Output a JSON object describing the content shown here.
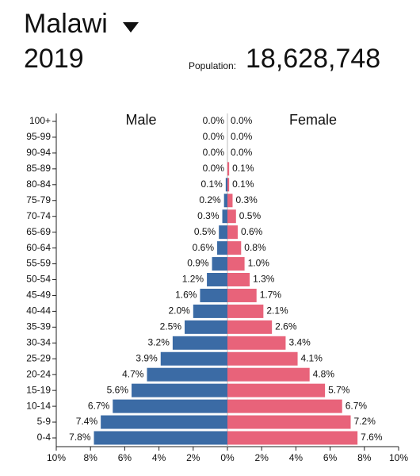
{
  "header": {
    "country": "Malawi",
    "year": "2019",
    "population_label": "Population:",
    "population": "18,628,748"
  },
  "chart_data": {
    "type": "population-pyramid",
    "categories": [
      "100+",
      "95-99",
      "90-94",
      "85-89",
      "80-84",
      "75-79",
      "70-74",
      "65-69",
      "60-64",
      "55-59",
      "50-54",
      "45-49",
      "40-44",
      "35-39",
      "30-34",
      "25-29",
      "20-24",
      "15-19",
      "10-14",
      "5-9",
      "0-4"
    ],
    "series": [
      {
        "name": "Male",
        "color": "#3b6ba5",
        "values": [
          0.0,
          0.0,
          0.0,
          0.0,
          0.1,
          0.2,
          0.3,
          0.5,
          0.6,
          0.9,
          1.2,
          1.6,
          2.0,
          2.5,
          3.2,
          3.9,
          4.7,
          5.6,
          6.7,
          7.4,
          7.8
        ],
        "value_labels": [
          "0.0%",
          "0.0%",
          "0.0%",
          "0.0%",
          "0.1%",
          "0.2%",
          "0.3%",
          "0.5%",
          "0.6%",
          "0.9%",
          "1.2%",
          "1.6%",
          "2.0%",
          "2.5%",
          "3.2%",
          "3.9%",
          "4.7%",
          "5.6%",
          "6.7%",
          "7.4%",
          "7.8%"
        ]
      },
      {
        "name": "Female",
        "color": "#e8637a",
        "values": [
          0.0,
          0.0,
          0.0,
          0.1,
          0.1,
          0.3,
          0.5,
          0.6,
          0.8,
          1.0,
          1.3,
          1.7,
          2.1,
          2.6,
          3.4,
          4.1,
          4.8,
          5.7,
          6.7,
          7.2,
          7.6
        ],
        "value_labels": [
          "0.0%",
          "0.0%",
          "0.0%",
          "0.1%",
          "0.1%",
          "0.3%",
          "0.5%",
          "0.6%",
          "0.8%",
          "1.0%",
          "1.3%",
          "1.7%",
          "2.1%",
          "2.6%",
          "3.4%",
          "4.1%",
          "4.8%",
          "5.7%",
          "6.7%",
          "7.2%",
          "7.6%"
        ]
      }
    ],
    "xlim": [
      -10,
      10
    ],
    "xticks": [
      {
        "value": -10,
        "label": "10%"
      },
      {
        "value": -8,
        "label": "8%"
      },
      {
        "value": -6,
        "label": "6%"
      },
      {
        "value": -4,
        "label": "4%"
      },
      {
        "value": -2,
        "label": "2%"
      },
      {
        "value": 0,
        "label": "0%"
      },
      {
        "value": 2,
        "label": "2%"
      },
      {
        "value": 4,
        "label": "4%"
      },
      {
        "value": 6,
        "label": "6%"
      },
      {
        "value": 8,
        "label": "8%"
      },
      {
        "value": 10,
        "label": "10%"
      }
    ]
  }
}
